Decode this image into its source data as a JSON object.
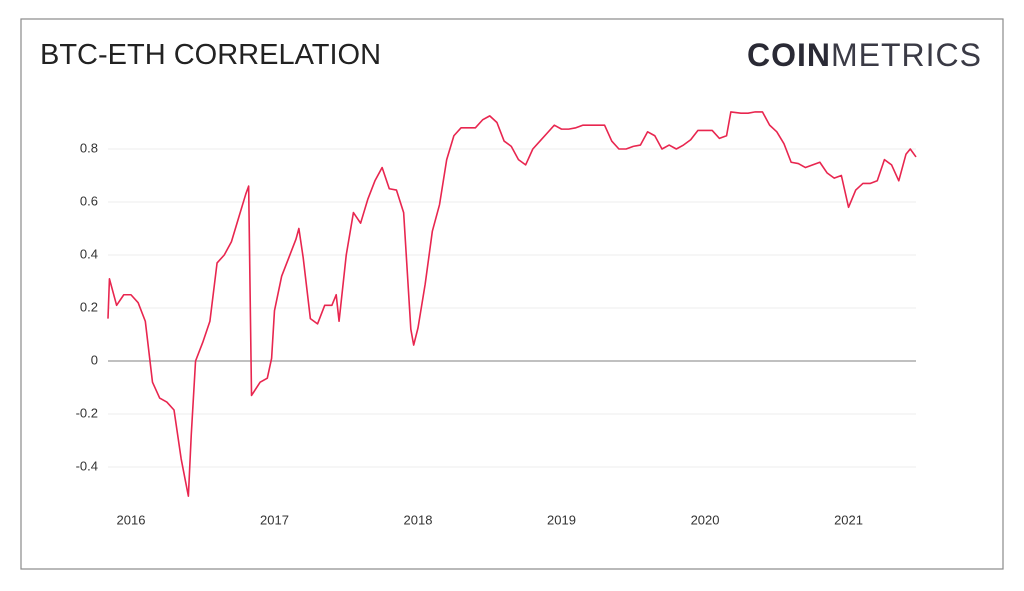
{
  "chart_data": {
    "type": "line",
    "title": "BTC-ETH CORRELATION",
    "logo": [
      "COIN",
      "METRICS"
    ],
    "x": [
      2015.84,
      2015.85,
      2015.9,
      2015.95,
      2016.0,
      2016.05,
      2016.1,
      2016.15,
      2016.2,
      2016.25,
      2016.3,
      2016.35,
      2016.4,
      2016.42,
      2016.45,
      2016.5,
      2016.55,
      2016.6,
      2016.65,
      2016.7,
      2016.75,
      2016.8,
      2016.82,
      2016.84,
      2016.9,
      2016.95,
      2016.98,
      2017.0,
      2017.05,
      2017.1,
      2017.15,
      2017.17,
      2017.2,
      2017.25,
      2017.3,
      2017.35,
      2017.4,
      2017.43,
      2017.45,
      2017.5,
      2017.55,
      2017.6,
      2017.65,
      2017.7,
      2017.75,
      2017.8,
      2017.85,
      2017.9,
      2017.95,
      2017.97,
      2018.0,
      2018.05,
      2018.1,
      2018.15,
      2018.2,
      2018.25,
      2018.3,
      2018.35,
      2018.4,
      2018.45,
      2018.5,
      2018.55,
      2018.6,
      2018.65,
      2018.7,
      2018.75,
      2018.8,
      2018.85,
      2018.9,
      2018.95,
      2019.0,
      2019.05,
      2019.1,
      2019.15,
      2019.2,
      2019.25,
      2019.3,
      2019.35,
      2019.4,
      2019.45,
      2019.5,
      2019.55,
      2019.6,
      2019.65,
      2019.7,
      2019.75,
      2019.8,
      2019.85,
      2019.9,
      2019.95,
      2020.0,
      2020.05,
      2020.1,
      2020.15,
      2020.18,
      2020.25,
      2020.3,
      2020.35,
      2020.4,
      2020.45,
      2020.5,
      2020.55,
      2020.6,
      2020.65,
      2020.7,
      2020.75,
      2020.8,
      2020.85,
      2020.9,
      2020.95,
      2021.0,
      2021.05,
      2021.1,
      2021.15,
      2021.2,
      2021.25,
      2021.3,
      2021.35,
      2021.4,
      2021.43,
      2021.47
    ],
    "series": [
      {
        "name": "BTC-ETH correlation",
        "color": "#e8264f",
        "values": [
          0.16,
          0.31,
          0.21,
          0.25,
          0.25,
          0.22,
          0.15,
          -0.08,
          -0.14,
          -0.155,
          -0.185,
          -0.37,
          -0.51,
          -0.28,
          0.0,
          0.07,
          0.15,
          0.37,
          0.4,
          0.45,
          0.54,
          0.63,
          0.66,
          -0.13,
          -0.08,
          -0.065,
          0.01,
          0.19,
          0.32,
          0.39,
          0.46,
          0.5,
          0.39,
          0.16,
          0.14,
          0.21,
          0.21,
          0.25,
          0.15,
          0.4,
          0.56,
          0.52,
          0.61,
          0.68,
          0.73,
          0.65,
          0.645,
          0.56,
          0.12,
          0.06,
          0.125,
          0.29,
          0.49,
          0.59,
          0.76,
          0.85,
          0.88,
          0.88,
          0.88,
          0.91,
          0.925,
          0.9,
          0.83,
          0.81,
          0.76,
          0.74,
          0.8,
          0.83,
          0.86,
          0.89,
          0.875,
          0.875,
          0.88,
          0.89,
          0.89,
          0.89,
          0.89,
          0.83,
          0.8,
          0.8,
          0.81,
          0.815,
          0.865,
          0.85,
          0.8,
          0.815,
          0.8,
          0.815,
          0.835,
          0.87,
          0.87,
          0.87,
          0.84,
          0.85,
          0.94,
          0.935,
          0.935,
          0.94,
          0.94,
          0.89,
          0.865,
          0.82,
          0.75,
          0.745,
          0.73,
          0.74,
          0.75,
          0.71,
          0.69,
          0.7,
          0.58,
          0.645,
          0.67,
          0.67,
          0.68,
          0.76,
          0.74,
          0.68,
          0.78,
          0.8,
          0.77
        ]
      }
    ],
    "xlim": [
      2015.84,
      2021.47
    ],
    "xticks": [
      2016,
      2017,
      2018,
      2019,
      2020,
      2021
    ],
    "ylim": [
      -0.55,
      1.0
    ],
    "yticks": [
      0.8,
      0.6,
      0.4,
      0.2,
      0,
      -0.2,
      -0.4
    ],
    "grid": true
  }
}
